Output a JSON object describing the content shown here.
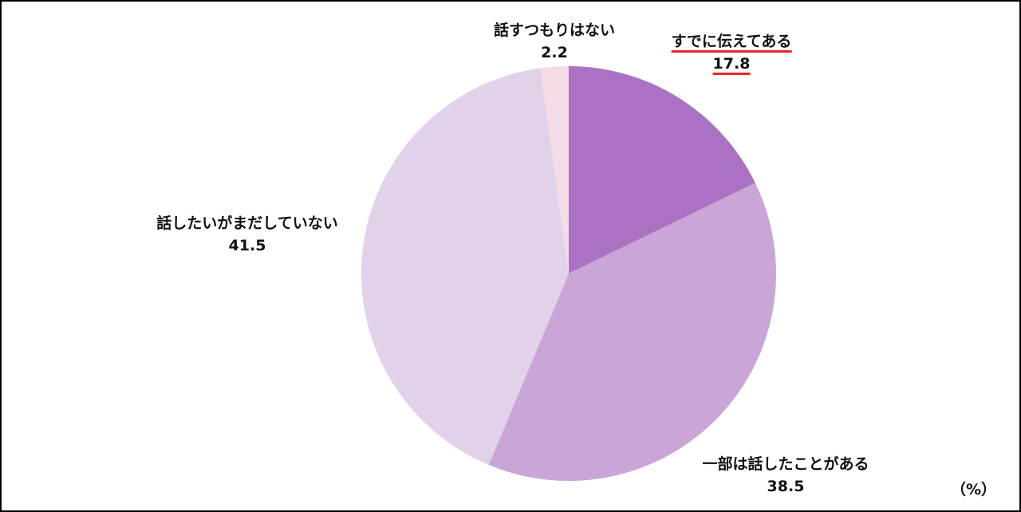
{
  "chart_data": {
    "type": "pie",
    "unit": "（%）",
    "start": "top",
    "direction": "clockwise",
    "slices": [
      {
        "label": "すでに伝えてある",
        "value": 17.8,
        "color": "#ab72c4",
        "highlight": true,
        "highlight_color": "#e8262d"
      },
      {
        "label": "一部は話したことがある",
        "value": 38.5,
        "color": "#c9a5d8"
      },
      {
        "label": "話したいがまだしていない",
        "value": 41.5,
        "color": "#e1d1e9"
      },
      {
        "label": "話すつもりはない",
        "value": 2.2,
        "color": "#f3dbe8"
      }
    ]
  }
}
